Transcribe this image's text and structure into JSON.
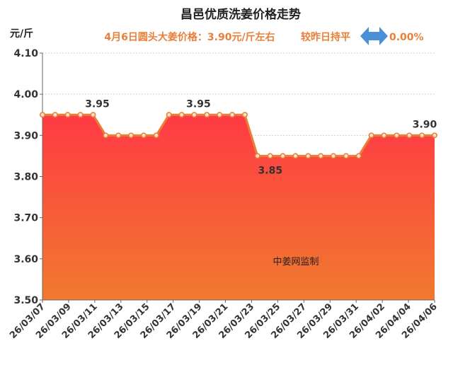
{
  "chart_data": {
    "type": "area",
    "title": "昌邑优质洗姜价格走势",
    "subtitle": "4月6日圆头大姜价格：3.90元/斤左右",
    "change_label": "较昨日持平",
    "change_value": "0.00%",
    "ylabel": "元/斤",
    "ylim": [
      3.5,
      4.1
    ],
    "yticks": [
      "3.50",
      "3.60",
      "3.70",
      "3.80",
      "3.90",
      "4.00",
      "4.10"
    ],
    "xticks": [
      "26/03/07",
      "26/03/09",
      "26/03/11",
      "26/03/13",
      "26/03/15",
      "26/03/17",
      "26/03/19",
      "26/03/21",
      "26/03/23",
      "26/03/25",
      "26/03/27",
      "26/03/29",
      "26/03/31",
      "26/04/02",
      "26/04/04",
      "26/04/06"
    ],
    "values": [
      3.95,
      3.95,
      3.95,
      3.95,
      3.95,
      3.9,
      3.9,
      3.9,
      3.9,
      3.9,
      3.95,
      3.95,
      3.95,
      3.95,
      3.95,
      3.95,
      3.95,
      3.85,
      3.85,
      3.85,
      3.85,
      3.85,
      3.85,
      3.85,
      3.85,
      3.85,
      3.9,
      3.9,
      3.9,
      3.9,
      3.9,
      3.9
    ],
    "data_labels": [
      {
        "index": 4,
        "text": "3.95"
      },
      {
        "index": 12,
        "text": "3.95"
      },
      {
        "index": 17,
        "text": "3.85"
      },
      {
        "index": 31,
        "text": "3.90"
      }
    ],
    "watermark": "中姜网监制",
    "grid": true,
    "legend": "none",
    "colors": {
      "line": "#e8803a",
      "area_top": "#ff3a44",
      "area_bottom": "#f07a2e",
      "subtitle": "#e8803a",
      "arrow": "#4a8fd8"
    }
  }
}
